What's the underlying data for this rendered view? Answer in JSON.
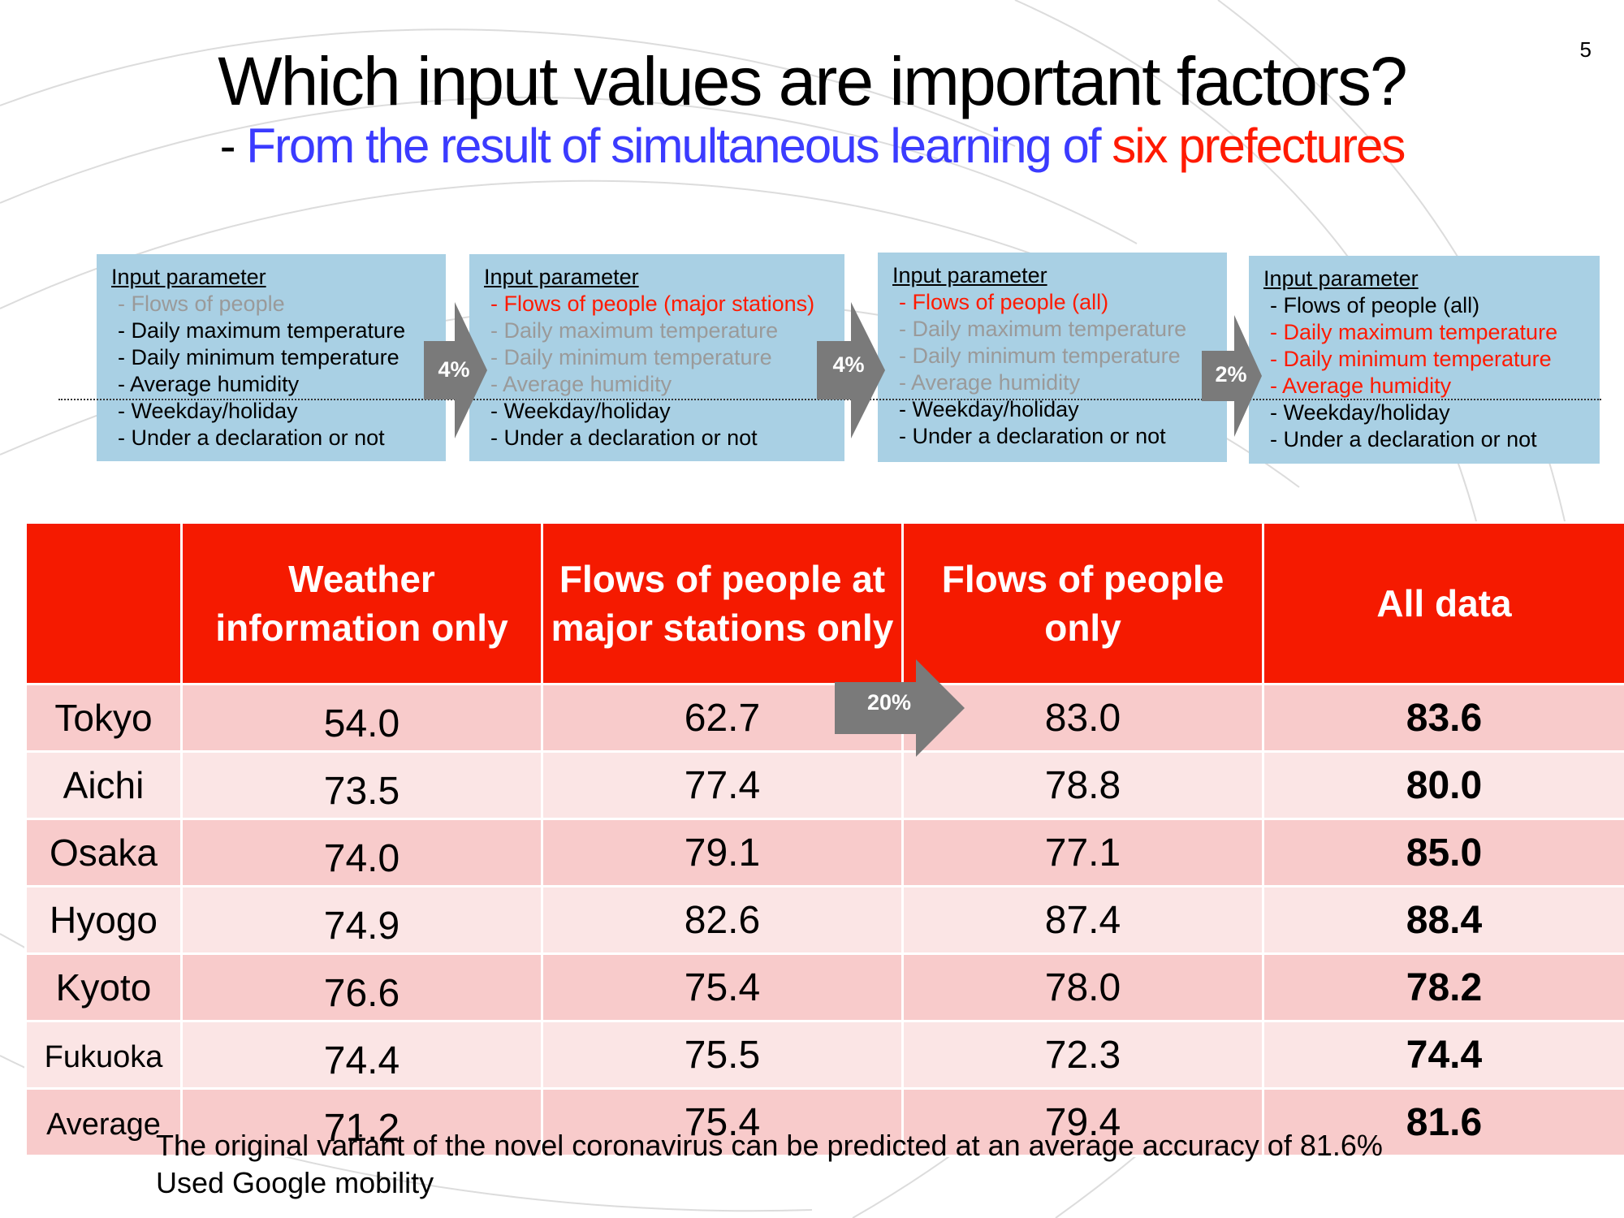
{
  "page_number": "5",
  "title": "Which input values are important factors?",
  "subtitle": {
    "dash": "- ",
    "blue": "From the result of simultaneous learning of ",
    "red": "six prefectures"
  },
  "param_boxes": [
    {
      "header": "Input parameter",
      "items": [
        {
          "text": "- Flows of people",
          "color": "#9a9a9a"
        },
        {
          "text": "- Daily maximum temperature",
          "color": "#000000"
        },
        {
          "text": "- Daily minimum temperature",
          "color": "#000000"
        },
        {
          "text": "- Average humidity",
          "color": "#000000"
        },
        {
          "text": "- Weekday/holiday",
          "color": "#000000"
        },
        {
          "text": "- Under a declaration or not",
          "color": "#000000"
        }
      ]
    },
    {
      "header": "Input parameter",
      "items": [
        {
          "text": "- Flows of people (major stations)",
          "color": "#ff1a00"
        },
        {
          "text": "- Daily maximum temperature",
          "color": "#9a9a9a"
        },
        {
          "text": "- Daily minimum temperature",
          "color": "#9a9a9a"
        },
        {
          "text": "- Average humidity",
          "color": "#9a9a9a"
        },
        {
          "text": "- Weekday/holiday",
          "color": "#000000"
        },
        {
          "text": "- Under a declaration or not",
          "color": "#000000"
        }
      ]
    },
    {
      "header": "Input parameter",
      "items": [
        {
          "text": "- Flows of people (all)",
          "color": "#ff1a00"
        },
        {
          "text": "- Daily maximum temperature",
          "color": "#9a9a9a"
        },
        {
          "text": "- Daily minimum temperature",
          "color": "#9a9a9a"
        },
        {
          "text": "- Average humidity",
          "color": "#9a9a9a"
        },
        {
          "text": "- Weekday/holiday",
          "color": "#000000"
        },
        {
          "text": "- Under a declaration or not",
          "color": "#000000"
        }
      ]
    },
    {
      "header": "Input parameter",
      "items": [
        {
          "text": "- Flows of people (all)",
          "color": "#000000"
        },
        {
          "text": "- Daily maximum temperature",
          "color": "#ff1a00"
        },
        {
          "text": "- Daily minimum temperature",
          "color": "#ff1a00"
        },
        {
          "text": "- Average humidity",
          "color": "#ff1a00"
        },
        {
          "text": "- Weekday/holiday",
          "color": "#000000"
        },
        {
          "text": "- Under a declaration or not",
          "color": "#000000"
        }
      ]
    }
  ],
  "arrows": [
    "4%",
    "4%",
    "2%",
    "20%"
  ],
  "table": {
    "headers": [
      "",
      "Weather information only",
      "Flows of people at major stations only",
      "Flows of people only",
      "All data"
    ],
    "rows": [
      {
        "name": "Tokyo",
        "values": [
          "54.0",
          "62.7",
          "83.0",
          "83.6"
        ]
      },
      {
        "name": "Aichi",
        "values": [
          "73.5",
          "77.4",
          "78.8",
          "80.0"
        ]
      },
      {
        "name": "Osaka",
        "values": [
          "74.0",
          "79.1",
          "77.1",
          "85.0"
        ]
      },
      {
        "name": "Hyogo",
        "values": [
          "74.9",
          "82.6",
          "87.4",
          "88.4"
        ]
      },
      {
        "name": "Kyoto",
        "values": [
          "76.6",
          "75.4",
          "78.0",
          "78.2"
        ]
      },
      {
        "name": "Fukuoka",
        "values": [
          "74.4",
          "75.5",
          "72.3",
          "74.4"
        ]
      },
      {
        "name": "Average",
        "values": [
          "71.2",
          "75.4",
          "79.4",
          "81.6"
        ]
      }
    ]
  },
  "footer": {
    "line1": "The original variant of the novel coronavirus can be predicted at an average accuracy of 81.6%",
    "line2": "Used Google mobility"
  },
  "colors": {
    "header_red": "#f51a00",
    "row_dark": "#f8cbcb",
    "row_light": "#fbe5e5",
    "param_box_blue": "#a9d0e4",
    "arrow_grey": "#7a7a7a"
  }
}
